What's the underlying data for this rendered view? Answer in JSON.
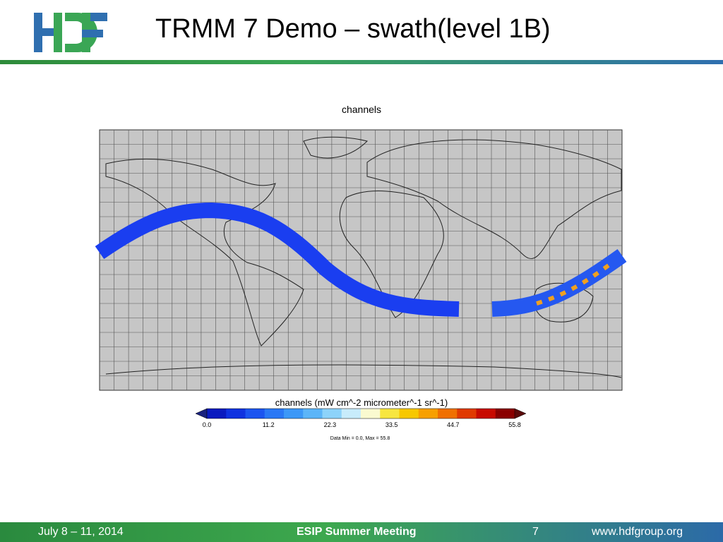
{
  "header": {
    "title": "TRMM 7 Demo – swath(level 1B)"
  },
  "figure": {
    "title": "channels",
    "colorbar": {
      "label": "channels (mW cm^-2 micrometer^-1 sr^-1)",
      "ticks": [
        "0.0",
        "11.2",
        "22.3",
        "33.5",
        "44.7",
        "55.8"
      ],
      "colors": [
        "#0a1bbf",
        "#1033e0",
        "#1c55f0",
        "#2a78f5",
        "#3c98f7",
        "#5cb5f8",
        "#8dd3fa",
        "#c8ecfb",
        "#fafad0",
        "#f7e640",
        "#f7c800",
        "#f7a000",
        "#f07000",
        "#e03a00",
        "#c80a00",
        "#8a0000"
      ],
      "under": "#1a237e",
      "over": "#5a0a0a"
    },
    "note": "Data Min = 0.0, Max = 55.8"
  },
  "footer": {
    "date": "July 8 – 11, 2014",
    "event": "ESIP Summer Meeting",
    "page": "7",
    "website": "www.hdfgroup.org"
  }
}
